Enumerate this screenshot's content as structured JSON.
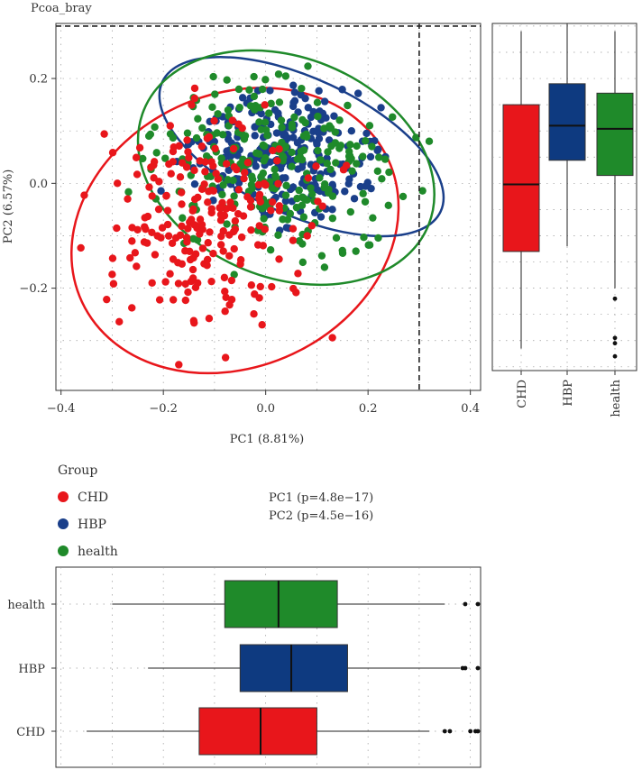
{
  "chart_data": [
    {
      "type": "scatter",
      "title": "Pcoa_bray",
      "xlabel": "PC1 (8.81%)",
      "ylabel": "PC2 (6.57%)",
      "xlim": [
        -0.41,
        0.42
      ],
      "ylim": [
        -0.395,
        0.305
      ],
      "xticks": [
        -0.4,
        -0.2,
        0.0,
        0.2,
        0.4
      ],
      "xtick_labels": [
        "−0.4",
        "−0.2",
        "0.0",
        "0.2",
        "0.4"
      ],
      "yticks": [
        -0.2,
        0.0,
        0.2
      ],
      "ytick_labels": [
        "−0.2",
        "0.0",
        "0.2"
      ],
      "grid": true,
      "reference_lines": {
        "vertical_x": 0.3,
        "horizontal_y": 0.3
      },
      "series": [
        {
          "name": "CHD",
          "color": "#e8161b",
          "center": [
            -0.12,
            -0.08
          ],
          "spread": [
            0.1,
            0.1
          ],
          "n": 230,
          "ellipse": {
            "cx": -0.06,
            "cy": -0.09,
            "rx": 0.33,
            "ry": 0.26,
            "angle_deg": 25
          }
        },
        {
          "name": "HBP",
          "color": "#1a3f8a",
          "center": [
            0.02,
            0.06
          ],
          "spread": [
            0.11,
            0.07
          ],
          "n": 260,
          "ellipse": {
            "cx": 0.07,
            "cy": 0.07,
            "rx": 0.3,
            "ry": 0.13,
            "angle_deg": -25
          }
        },
        {
          "name": "health",
          "color": "#1f8a2a",
          "center": [
            0.02,
            0.03
          ],
          "spread": [
            0.12,
            0.08
          ],
          "n": 260,
          "ellipse": {
            "cx": 0.04,
            "cy": 0.03,
            "rx": 0.3,
            "ry": 0.21,
            "angle_deg": -22
          }
        }
      ]
    },
    {
      "type": "boxplot",
      "orientation": "vertical",
      "axis": "PC2",
      "categories": [
        "CHD",
        "HBP",
        "health"
      ],
      "colors": [
        "#e8161b",
        "#0e3a80",
        "#1f8a2a"
      ],
      "boxes": [
        {
          "q1": -0.13,
          "median": -0.002,
          "q3": 0.15,
          "whisker_low": -0.315,
          "whisker_high": 0.29,
          "outliers": []
        },
        {
          "q1": 0.044,
          "median": 0.11,
          "q3": 0.19,
          "whisker_low": -0.12,
          "whisker_high": 0.305,
          "outliers": []
        },
        {
          "q1": 0.015,
          "median": 0.104,
          "q3": 0.172,
          "whisker_low": -0.2,
          "whisker_high": 0.29,
          "outliers": [
            -0.22,
            -0.295,
            -0.305,
            -0.33
          ]
        }
      ]
    },
    {
      "type": "boxplot",
      "orientation": "horizontal",
      "axis": "PC1",
      "categories": [
        "CHD",
        "HBP",
        "health"
      ],
      "colors": [
        "#e8161b",
        "#0e3a80",
        "#1f8a2a"
      ],
      "boxes": [
        {
          "q1": -0.13,
          "median": -0.01,
          "q3": 0.1,
          "whisker_low": -0.35,
          "whisker_high": 0.32,
          "outliers": [
            0.35,
            0.36,
            0.4,
            0.41,
            0.42
          ]
        },
        {
          "q1": -0.05,
          "median": 0.05,
          "q3": 0.16,
          "whisker_low": -0.23,
          "whisker_high": 0.38,
          "outliers": [
            0.385,
            0.39,
            0.45
          ]
        },
        {
          "q1": -0.08,
          "median": 0.025,
          "q3": 0.14,
          "whisker_low": -0.3,
          "whisker_high": 0.35,
          "outliers": [
            0.39,
            0.44
          ]
        }
      ]
    }
  ],
  "legend": {
    "title": "Group",
    "items": [
      {
        "label": "CHD",
        "color": "#e8161b"
      },
      {
        "label": "HBP",
        "color": "#1a3f8a"
      },
      {
        "label": "health",
        "color": "#1f8a2a"
      }
    ]
  },
  "stats": {
    "pc1": "PC1 (p=4.8e−17)",
    "pc2": "PC2 (p=4.5e−16)"
  }
}
